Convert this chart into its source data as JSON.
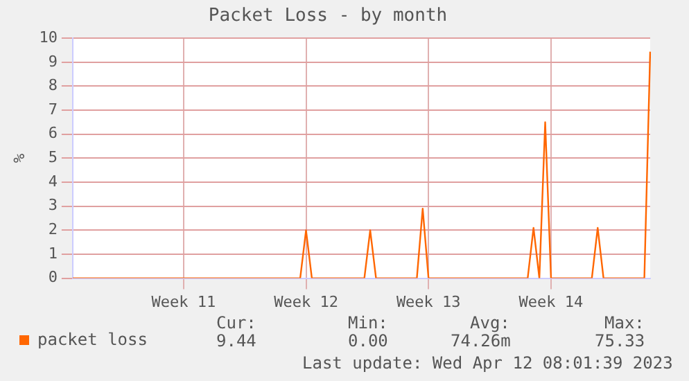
{
  "chart_data": {
    "type": "line",
    "title": "Packet Loss - by month",
    "ylabel": "%",
    "categories": [
      null,
      null,
      null,
      null,
      null,
      null,
      null,
      null,
      null,
      null,
      null,
      null,
      null,
      null,
      null,
      null,
      null,
      null,
      null,
      "Week 11",
      null,
      null,
      null,
      null,
      null,
      null,
      null,
      null,
      null,
      null,
      null,
      null,
      null,
      null,
      null,
      null,
      null,
      null,
      null,
      null,
      "Week 12",
      null,
      null,
      null,
      null,
      null,
      null,
      null,
      null,
      null,
      null,
      null,
      null,
      null,
      null,
      null,
      null,
      null,
      null,
      null,
      null,
      "Week 13",
      null,
      null,
      null,
      null,
      null,
      null,
      null,
      null,
      null,
      null,
      null,
      null,
      null,
      null,
      null,
      null,
      null,
      null,
      null,
      null,
      "Week 14",
      null,
      null,
      null,
      null,
      null,
      null,
      null,
      null,
      null,
      null,
      null,
      null,
      null,
      null,
      null,
      null,
      null
    ],
    "series": [
      {
        "name": "packet loss",
        "color": "#ff6600",
        "values": [
          0,
          0,
          0,
          0,
          0,
          0,
          0,
          0,
          0,
          0,
          0,
          0,
          0,
          0,
          0,
          0,
          0,
          0,
          0,
          0,
          0,
          0,
          0,
          0,
          0,
          0,
          0,
          0,
          0,
          0,
          0,
          0,
          0,
          0,
          0,
          0,
          0,
          0,
          0,
          0,
          2,
          0,
          0,
          0,
          0,
          0,
          0,
          0,
          0,
          0,
          0,
          2,
          0,
          0,
          0,
          0,
          0,
          0,
          0,
          0,
          2.9,
          0,
          0,
          0,
          0,
          0,
          0,
          0,
          0,
          0,
          0,
          0,
          0,
          0,
          0,
          0,
          0,
          0,
          0,
          2.1,
          0,
          6.5,
          0,
          0,
          0,
          0,
          0,
          0,
          0,
          0,
          2.1,
          0,
          0,
          0,
          0,
          0,
          0,
          0,
          0,
          9.44
        ]
      }
    ],
    "ylim": [
      0,
      10
    ],
    "yticks": [
      0,
      1,
      2,
      3,
      4,
      5,
      6,
      7,
      8,
      9,
      10
    ],
    "grid": true,
    "legend": "bottom left",
    "marker": "none",
    "line_style": "solid",
    "annotations": [
      "Cur:",
      "9.44",
      "Min:",
      "0.00",
      "Avg:",
      "74.26m",
      "Max:",
      "75.33",
      "Last update: Wed Apr 12 08:01:39 2023"
    ]
  }
}
